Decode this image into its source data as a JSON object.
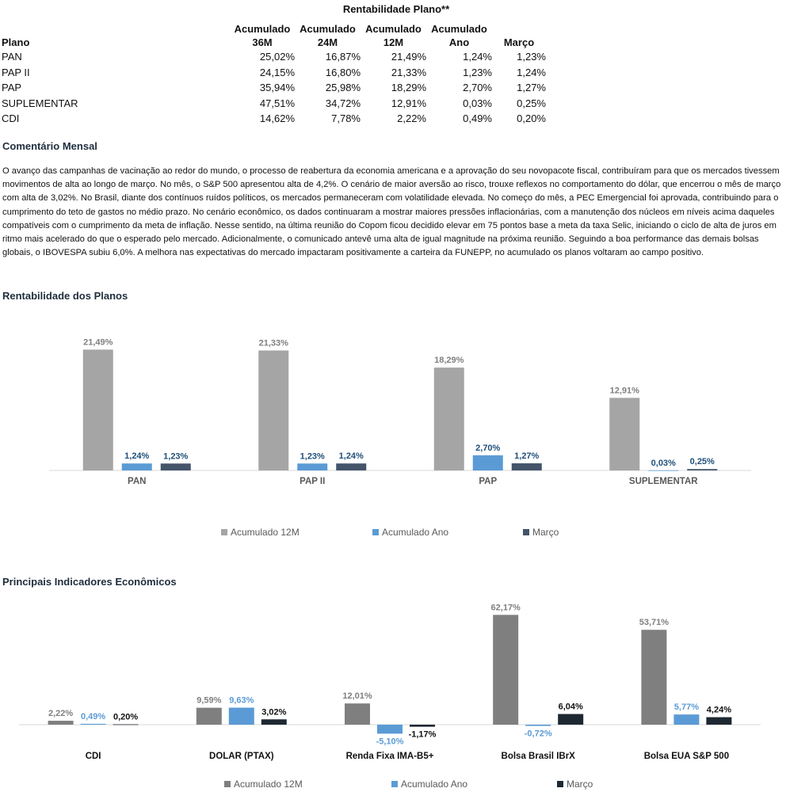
{
  "header": {
    "title": "Rentabilidade Plano**"
  },
  "table": {
    "columns": [
      "Plano",
      "Acumulado\n36M",
      "Acumulado\n24M",
      "Acumulado\n12M",
      "Acumulado\nAno",
      "Março"
    ],
    "rows": [
      [
        "PAN",
        "25,02%",
        "16,87%",
        "21,49%",
        "1,24%",
        "1,23%"
      ],
      [
        "PAP II",
        "24,15%",
        "16,80%",
        "21,33%",
        "1,23%",
        "1,24%"
      ],
      [
        "PAP",
        "35,94%",
        "25,98%",
        "18,29%",
        "2,70%",
        "1,27%"
      ],
      [
        "SUPLEMENTAR",
        "47,51%",
        "34,72%",
        "12,91%",
        "0,03%",
        "0,25%"
      ],
      [
        "CDI",
        "14,62%",
        "7,78%",
        "2,22%",
        "0,49%",
        "0,20%"
      ]
    ]
  },
  "comment": {
    "title": "Comentário Mensal",
    "text": "O avanço das campanhas de vacinação ao redor do mundo, o processo de reabertura da economia americana e a aprovação do seu novopacote fiscal, contribuíram para que os mercados tivessem movimentos de alta ao longo de março. No mês, o S&P 500 apresentou alta de 4,2%. O cenário de maior aversão ao risco, trouxe reflexos no comportamento do dólar, que encerrou o mês de março com alta de 3,02%. No Brasil, diante dos contínuos ruídos políticos, os mercados permaneceram com volatilidade elevada. No começo do mês, a PEC Emergencial foi aprovada, contribuindo para o cumprimento do teto de gastos no médio prazo. No cenário econômico, os dados continuaram a mostrar maiores pressões inflacionárias, com a manutenção dos núcleos em níveis acima daqueles compatíveis com o cumprimento da meta de inflação. Nesse sentido, na última reunião do Copom ficou decidido elevar em 75 pontos base a meta da taxa Selic, iniciando o ciclo de alta de juros em ritmo mais acelerado do que o esperado pelo mercado. Adicionalmente, o comunicado antevê uma alta de igual magnitude na próxima reunião. Seguindo a boa performance das demais bolsas globais, o IBOVESPA subiu 6,0%. A melhora nas expectativas do mercado impactaram positivamente a carteira da FUNEPP, no acumulado os planos voltaram ao campo positivo."
  },
  "chart1_section": "Rentabilidade dos Planos",
  "chart2_section": "Principais Indicadores Econômicos",
  "chart_data": [
    {
      "type": "bar",
      "categories": [
        "PAN",
        "PAP II",
        "PAP",
        "SUPLEMENTAR"
      ],
      "series": [
        {
          "name": "Acumulado 12M",
          "values": [
            21.49,
            21.33,
            18.29,
            12.91
          ],
          "labels": [
            "21,49%",
            "21,33%",
            "18,29%",
            "12,91%"
          ],
          "color": "#a5a5a5",
          "label_color": "#7f7f7f"
        },
        {
          "name": "Acumulado Ano",
          "values": [
            1.24,
            1.23,
            2.7,
            0.03
          ],
          "labels": [
            "1,24%",
            "1,23%",
            "2,70%",
            "0,03%"
          ],
          "color": "#5b9bd5",
          "label_color": "#1f4e79"
        },
        {
          "name": "Março",
          "values": [
            1.23,
            1.24,
            1.27,
            0.25
          ],
          "labels": [
            "1,23%",
            "1,24%",
            "1,27%",
            "0,25%"
          ],
          "color": "#44546a",
          "label_color": "#1f4e79"
        }
      ],
      "legend": "bottom",
      "grid": false
    },
    {
      "type": "bar",
      "categories": [
        "CDI",
        "DOLAR (PTAX)",
        "Renda Fixa IMA-B5+",
        "Bolsa Brasil IBrX",
        "Bolsa EUA S&P 500"
      ],
      "series": [
        {
          "name": "Acumulado 12M",
          "values": [
            2.22,
            9.59,
            12.01,
            62.17,
            53.71
          ],
          "labels": [
            "2,22%",
            "9,59%",
            "12,01%",
            "62,17%",
            "53,71%"
          ],
          "color": "#7f7f7f",
          "label_color": "#7f7f7f"
        },
        {
          "name": "Acumulado Ano",
          "values": [
            0.49,
            9.63,
            -5.1,
            -0.72,
            5.77
          ],
          "labels": [
            "0,49%",
            "9,63%",
            "-5,10%",
            "-0,72%",
            "5,77%"
          ],
          "color": "#5b9bd5",
          "label_color": "#5b9bd5"
        },
        {
          "name": "Março",
          "values": [
            0.2,
            3.02,
            -1.17,
            6.04,
            4.24
          ],
          "labels": [
            "0,20%",
            "3,02%",
            "-1,17%",
            "6,04%",
            "4,24%"
          ],
          "color": "#1e2832",
          "label_color": "#111111"
        }
      ],
      "legend": "bottom",
      "grid": false
    }
  ]
}
